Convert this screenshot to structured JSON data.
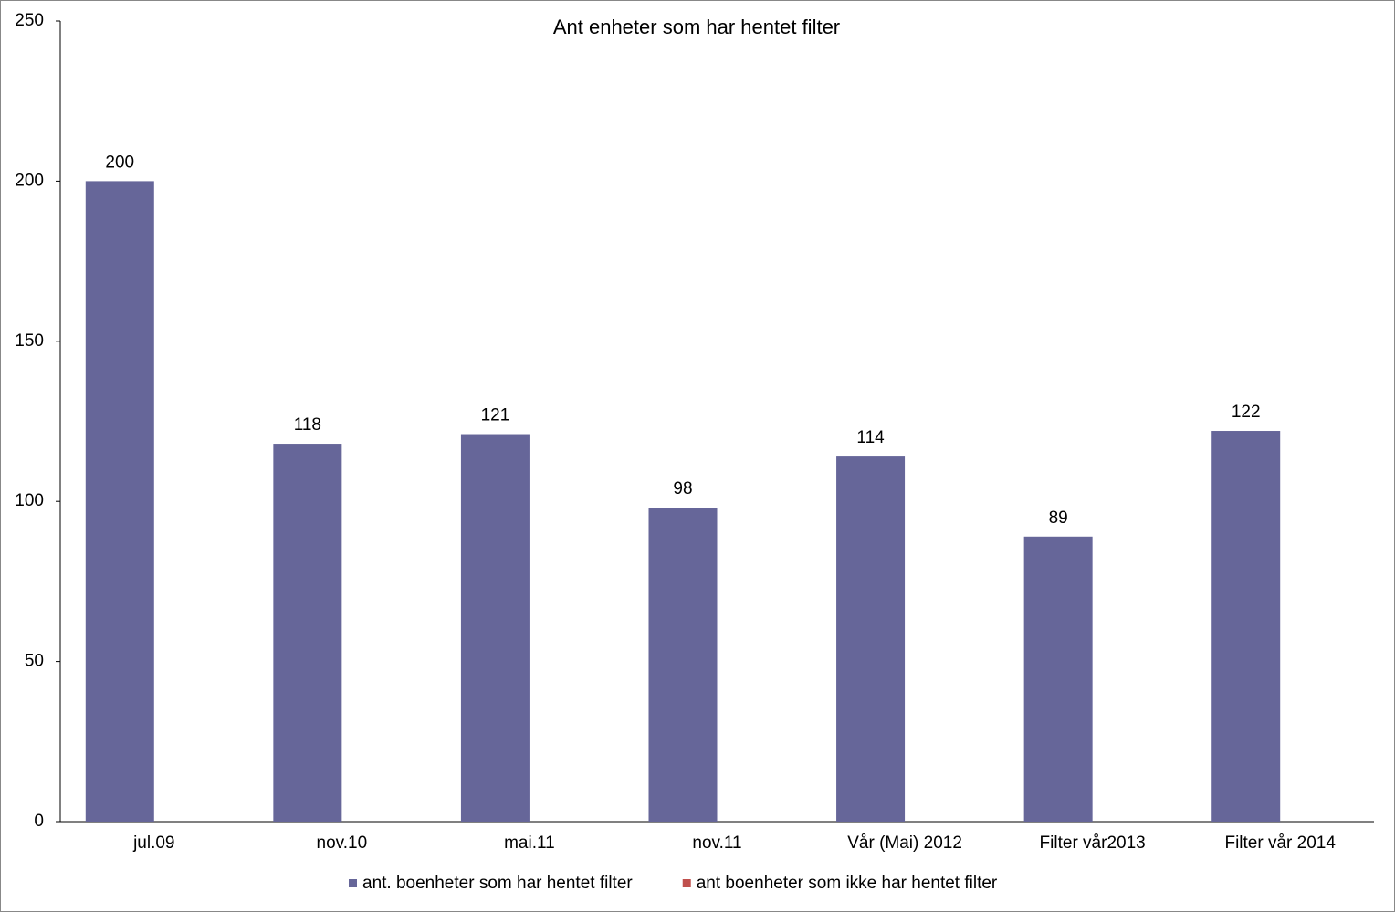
{
  "chart_data": {
    "type": "bar",
    "title": "Ant enheter som har hentet filter",
    "categories": [
      "jul.09",
      "nov.10",
      "mai.11",
      "nov.11",
      "Vår (Mai) 2012",
      "Filter vår2013",
      "Filter vår 2014"
    ],
    "series": [
      {
        "name": "ant. boenheter som har hentet filter",
        "color": "#666699",
        "values": [
          200,
          118,
          121,
          98,
          114,
          89,
          122
        ]
      },
      {
        "name": "ant boenheter som ikke har hentet filter",
        "color": "#c0504d",
        "values": [
          null,
          null,
          null,
          null,
          null,
          null,
          null
        ]
      }
    ],
    "ylim": [
      0,
      250
    ],
    "yticks": [
      0,
      50,
      100,
      150,
      200,
      250
    ],
    "grid": false,
    "legend": "bottom"
  }
}
